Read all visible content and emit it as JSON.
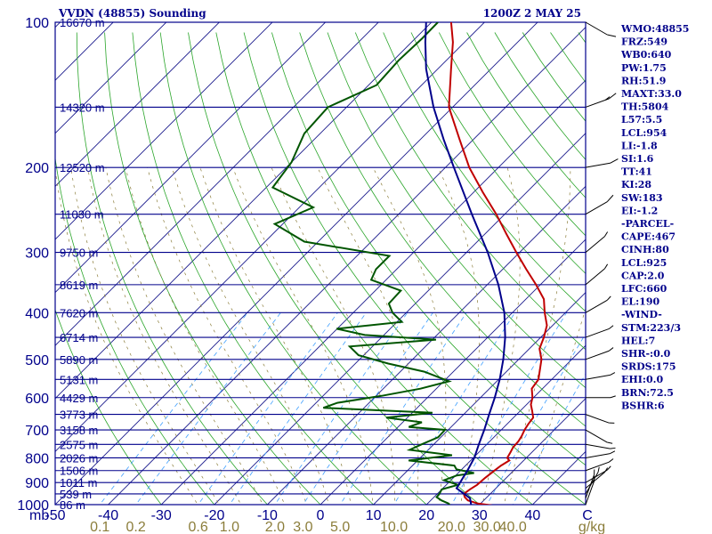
{
  "header": {
    "station": "VVDN (48855) Sounding",
    "time": "1200Z  2 MAY 25"
  },
  "indices": [
    "WMO:48855",
    "FRZ:549",
    "WB0:640",
    "PW:1.75",
    "RH:51.9",
    "MAXT:33.0",
    "TH:5804",
    "L57:5.5",
    "LCL:954",
    "LI:-1.8",
    "SI:1.6",
    "TT:41",
    "KI:28",
    "SW:183",
    "EI:-1.2",
    "-PARCEL-",
    "CAPE:467",
    "CINH:80",
    "LCL:925",
    "CAP:2.0",
    "LFC:660",
    "EL:190",
    "-WIND-",
    "STM:223/3",
    "HEL:7",
    "SHR-:0.0",
    "SRDS:175",
    "EHI:0.0",
    "BRN:72.5",
    "BSHR:6"
  ],
  "colors": {
    "axis": "#00008b",
    "isotherm": "#1a1a8c",
    "dry_adiabat": "#2aa52a",
    "moist_adiabat": "#8b7d3a",
    "mixing_ratio": "#40a0ff",
    "temperature": "#c00000",
    "dewpoint": "#005500",
    "parcel": "#00008b"
  },
  "chart_data": {
    "type": "line",
    "title": "VVDN (48855) Sounding",
    "xlabel": "C",
    "ylabel": "mb",
    "pressure_ticks": [
      "100",
      "200",
      "300",
      "400",
      "500",
      "600",
      "700",
      "800",
      "900",
      "1000"
    ],
    "temperature_ticks": [
      "-50",
      "-40",
      "-30",
      "-20",
      "-10",
      "0",
      "10",
      "20",
      "30",
      "40",
      "C"
    ],
    "mixing_ratio_ticks": [
      "0.1",
      "0.2",
      "0.6",
      "1.0",
      "2.0",
      "3.0",
      "5.0",
      "10.0",
      "20.0",
      "30.0",
      "40.0",
      "g/kg"
    ],
    "height_labels": [
      {
        "p": 100,
        "label": "16670 m"
      },
      {
        "p": 150,
        "label": "14320 m"
      },
      {
        "p": 200,
        "label": "12520 m"
      },
      {
        "p": 250,
        "label": "11030 m"
      },
      {
        "p": 300,
        "label": "9750 m"
      },
      {
        "p": 350,
        "label": "8619 m"
      },
      {
        "p": 400,
        "label": "7620 m"
      },
      {
        "p": 450,
        "label": "6714 m"
      },
      {
        "p": 500,
        "label": "5890 m"
      },
      {
        "p": 550,
        "label": "5131 m"
      },
      {
        "p": 600,
        "label": "4429 m"
      },
      {
        "p": 650,
        "label": "3773 m"
      },
      {
        "p": 700,
        "label": "3158 m"
      },
      {
        "p": 750,
        "label": "2575 m"
      },
      {
        "p": 800,
        "label": "2026 m"
      },
      {
        "p": 850,
        "label": "1506 m"
      },
      {
        "p": 900,
        "label": "1011 m"
      },
      {
        "p": 950,
        "label": "539 m"
      },
      {
        "p": 1000,
        "label": "86 m"
      }
    ],
    "p_range": [
      100,
      1000
    ],
    "t_range": [
      -50,
      50
    ],
    "series": [
      {
        "key": "temperature",
        "points": [
          [
            1004,
            32.5
          ],
          [
            995,
            29.5
          ],
          [
            980,
            27.0
          ],
          [
            965,
            25.8
          ],
          [
            950,
            25.0
          ],
          [
            930,
            25.3
          ],
          [
            910,
            25.8
          ],
          [
            880,
            26.0
          ],
          [
            850,
            26.4
          ],
          [
            830,
            26.7
          ],
          [
            810,
            27.3
          ],
          [
            800,
            26.4
          ],
          [
            780,
            26.0
          ],
          [
            760,
            25.5
          ],
          [
            740,
            25.4
          ],
          [
            720,
            25.0
          ],
          [
            700,
            24.4
          ],
          [
            680,
            24.0
          ],
          [
            660,
            23.7
          ],
          [
            640,
            22.3
          ],
          [
            620,
            20.8
          ],
          [
            600,
            19.8
          ],
          [
            575,
            18.0
          ],
          [
            550,
            17.5
          ],
          [
            500,
            14.3
          ],
          [
            475,
            11.9
          ],
          [
            450,
            10.6
          ],
          [
            425,
            8.9
          ],
          [
            400,
            6.1
          ],
          [
            375,
            3.4
          ],
          [
            350,
            -0.8
          ],
          [
            325,
            -5.6
          ],
          [
            300,
            -10.6
          ],
          [
            275,
            -15.9
          ],
          [
            250,
            -21.6
          ],
          [
            225,
            -28.3
          ],
          [
            200,
            -35.5
          ],
          [
            175,
            -42.6
          ],
          [
            150,
            -50.7
          ],
          [
            125,
            -57.5
          ],
          [
            110,
            -62.2
          ],
          [
            100,
            -66.3
          ]
        ]
      },
      {
        "key": "dewpoint",
        "points": [
          [
            1004,
            24.6
          ],
          [
            995,
            24.0
          ],
          [
            980,
            22.0
          ],
          [
            965,
            20.5
          ],
          [
            950,
            20.4
          ],
          [
            930,
            20.0
          ],
          [
            910,
            22.2
          ],
          [
            890,
            18.7
          ],
          [
            870,
            20.2
          ],
          [
            860,
            23.0
          ],
          [
            845,
            19.0
          ],
          [
            830,
            17.9
          ],
          [
            810,
            8.3
          ],
          [
            790,
            15.5
          ],
          [
            770,
            6.5
          ],
          [
            750,
            7.7
          ],
          [
            725,
            9.5
          ],
          [
            700,
            9.4
          ],
          [
            690,
            2.0
          ],
          [
            675,
            3.6
          ],
          [
            660,
            -4.0
          ],
          [
            645,
            3.8
          ],
          [
            630,
            -17.7
          ],
          [
            615,
            -16.0
          ],
          [
            595,
            -9.0
          ],
          [
            575,
            -3.0
          ],
          [
            555,
            1.0
          ],
          [
            530,
            -5.5
          ],
          [
            510,
            -13.8
          ],
          [
            490,
            -21.0
          ],
          [
            470,
            -24.3
          ],
          [
            455,
            -9.3
          ],
          [
            445,
            -23.6
          ],
          [
            432,
            -30.1
          ],
          [
            418,
            -19.1
          ],
          [
            400,
            -22.6
          ],
          [
            383,
            -25.0
          ],
          [
            360,
            -25.2
          ],
          [
            342,
            -32.8
          ],
          [
            325,
            -33.9
          ],
          [
            305,
            -33.9
          ],
          [
            285,
            -52.6
          ],
          [
            262,
            -61.5
          ],
          [
            242,
            -57.4
          ],
          [
            220,
            -68.8
          ],
          [
            195,
            -70.0
          ],
          [
            170,
            -73.0
          ],
          [
            150,
            -73.5
          ],
          [
            135,
            -68.5
          ],
          [
            120,
            -69.0
          ],
          [
            108,
            -68.7
          ],
          [
            100,
            -68.8
          ]
        ]
      },
      {
        "key": "parcel",
        "points": [
          [
            1004,
            28.6
          ],
          [
            970,
            27.0
          ],
          [
            925,
            22.6
          ],
          [
            850,
            21.3
          ],
          [
            800,
            20.2
          ],
          [
            750,
            18.5
          ],
          [
            700,
            16.8
          ],
          [
            650,
            14.8
          ],
          [
            600,
            12.7
          ],
          [
            550,
            10.2
          ],
          [
            500,
            7.1
          ],
          [
            450,
            3.3
          ],
          [
            400,
            -1.5
          ],
          [
            350,
            -7.9
          ],
          [
            300,
            -16.0
          ],
          [
            250,
            -26.2
          ],
          [
            200,
            -38.4
          ],
          [
            175,
            -45.6
          ],
          [
            150,
            -53.6
          ],
          [
            125,
            -62.2
          ],
          [
            110,
            -67.4
          ],
          [
            100,
            -71.0
          ]
        ]
      }
    ],
    "wind_barbs": [
      {
        "p": 1000,
        "dir": 200,
        "spd": 5
      },
      {
        "p": 970,
        "dir": 200,
        "spd": 5
      },
      {
        "p": 950,
        "dir": 210,
        "spd": 5
      },
      {
        "p": 925,
        "dir": 230,
        "spd": 5
      },
      {
        "p": 900,
        "dir": 240,
        "spd": 5
      },
      {
        "p": 850,
        "dir": 250,
        "spd": 5
      },
      {
        "p": 800,
        "dir": 260,
        "spd": 5
      },
      {
        "p": 750,
        "dir": 280,
        "spd": 5
      },
      {
        "p": 700,
        "dir": 300,
        "spd": 5
      },
      {
        "p": 650,
        "dir": 290,
        "spd": 5
      },
      {
        "p": 600,
        "dir": 270,
        "spd": 5
      },
      {
        "p": 550,
        "dir": 260,
        "spd": 5
      },
      {
        "p": 500,
        "dir": 250,
        "spd": 5
      },
      {
        "p": 450,
        "dir": 250,
        "spd": 5
      },
      {
        "p": 400,
        "dir": 240,
        "spd": 5
      },
      {
        "p": 350,
        "dir": 230,
        "spd": 5
      },
      {
        "p": 300,
        "dir": 230,
        "spd": 5
      },
      {
        "p": 250,
        "dir": 240,
        "spd": 10
      },
      {
        "p": 200,
        "dir": 260,
        "spd": 10
      },
      {
        "p": 150,
        "dir": 250,
        "spd": 15
      },
      {
        "p": 100,
        "dir": 300,
        "spd": 10
      }
    ]
  }
}
